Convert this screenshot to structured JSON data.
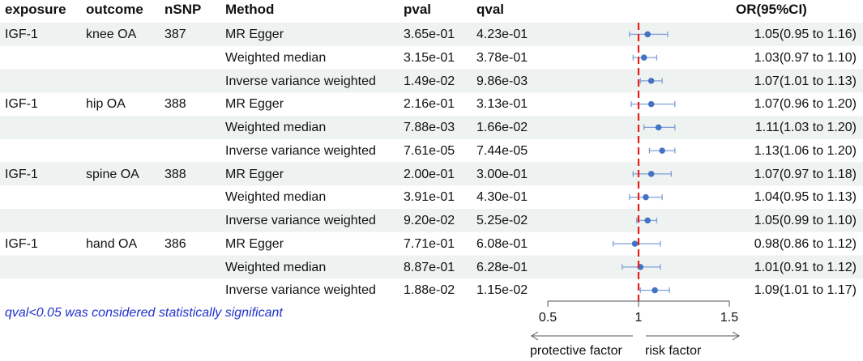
{
  "headers": {
    "exposure": "exposure",
    "outcome": "outcome",
    "nsnp": "nSNP",
    "method": "Method",
    "pval": "pval",
    "qval": "qval",
    "or": "OR(95%CI)"
  },
  "rows": [
    {
      "exposure": "IGF-1",
      "outcome": "knee OA",
      "nsnp": "387",
      "method": "MR Egger",
      "pval": "3.65e-01",
      "qval": "4.23e-01",
      "or_text": "1.05(0.95 to 1.16)"
    },
    {
      "exposure": "",
      "outcome": "",
      "nsnp": "",
      "method": "Weighted median",
      "pval": "3.15e-01",
      "qval": "3.78e-01",
      "or_text": "1.03(0.97 to 1.10)"
    },
    {
      "exposure": "",
      "outcome": "",
      "nsnp": "",
      "method": "Inverse variance weighted",
      "pval": "1.49e-02",
      "qval": "9.86e-03",
      "or_text": "1.07(1.01 to 1.13)"
    },
    {
      "exposure": "IGF-1",
      "outcome": "hip OA",
      "nsnp": "388",
      "method": "MR Egger",
      "pval": "2.16e-01",
      "qval": "3.13e-01",
      "or_text": "1.07(0.96 to 1.20)"
    },
    {
      "exposure": "",
      "outcome": "",
      "nsnp": "",
      "method": "Weighted median",
      "pval": "7.88e-03",
      "qval": "1.66e-02",
      "or_text": "1.11(1.03 to 1.20)"
    },
    {
      "exposure": "",
      "outcome": "",
      "nsnp": "",
      "method": "Inverse variance weighted",
      "pval": "7.61e-05",
      "qval": "7.44e-05",
      "or_text": "1.13(1.06 to 1.20)"
    },
    {
      "exposure": "IGF-1",
      "outcome": "spine OA",
      "nsnp": "388",
      "method": "MR Egger",
      "pval": "2.00e-01",
      "qval": "3.00e-01",
      "or_text": "1.07(0.97 to 1.18)"
    },
    {
      "exposure": "",
      "outcome": "",
      "nsnp": "",
      "method": "Weighted median",
      "pval": "3.91e-01",
      "qval": "4.30e-01",
      "or_text": "1.04(0.95 to 1.13)"
    },
    {
      "exposure": "",
      "outcome": "",
      "nsnp": "",
      "method": "Inverse variance weighted",
      "pval": "9.20e-02",
      "qval": "5.25e-02",
      "or_text": "1.05(0.99 to 1.10)"
    },
    {
      "exposure": "IGF-1",
      "outcome": "hand OA",
      "nsnp": "386",
      "method": "MR Egger",
      "pval": "7.71e-01",
      "qval": "6.08e-01",
      "or_text": "0.98(0.86 to 1.12)"
    },
    {
      "exposure": "",
      "outcome": "",
      "nsnp": "",
      "method": "Weighted median",
      "pval": "8.87e-01",
      "qval": "6.28e-01",
      "or_text": "1.01(0.91 to 1.12)"
    },
    {
      "exposure": "",
      "outcome": "",
      "nsnp": "",
      "method": "Inverse variance weighted",
      "pval": "1.88e-02",
      "qval": "1.15e-02",
      "or_text": "1.09(1.01 to 1.17)"
    }
  ],
  "note": "qval<0.05 was considered statistically significant",
  "colors": {
    "stripe": "#eef2f0",
    "point": "#4472c4",
    "ci": "#7f9fd8",
    "refline": "#e8201c",
    "note": "#2233cc"
  },
  "chart_data": {
    "type": "forest",
    "x_ticks": [
      "0.5",
      "1",
      "1.5"
    ],
    "xlim": [
      0.5,
      1.5
    ],
    "reference_line": 1,
    "direction_labels": {
      "left": "protective factor",
      "right": "risk factor"
    },
    "points": [
      {
        "or": 1.05,
        "lo": 0.95,
        "hi": 1.16
      },
      {
        "or": 1.03,
        "lo": 0.97,
        "hi": 1.1
      },
      {
        "or": 1.07,
        "lo": 1.01,
        "hi": 1.13
      },
      {
        "or": 1.07,
        "lo": 0.96,
        "hi": 1.2
      },
      {
        "or": 1.11,
        "lo": 1.03,
        "hi": 1.2
      },
      {
        "or": 1.13,
        "lo": 1.06,
        "hi": 1.2
      },
      {
        "or": 1.07,
        "lo": 0.97,
        "hi": 1.18
      },
      {
        "or": 1.04,
        "lo": 0.95,
        "hi": 1.13
      },
      {
        "or": 1.05,
        "lo": 0.99,
        "hi": 1.1
      },
      {
        "or": 0.98,
        "lo": 0.86,
        "hi": 1.12
      },
      {
        "or": 1.01,
        "lo": 0.91,
        "hi": 1.12
      },
      {
        "or": 1.09,
        "lo": 1.01,
        "hi": 1.17
      }
    ]
  }
}
